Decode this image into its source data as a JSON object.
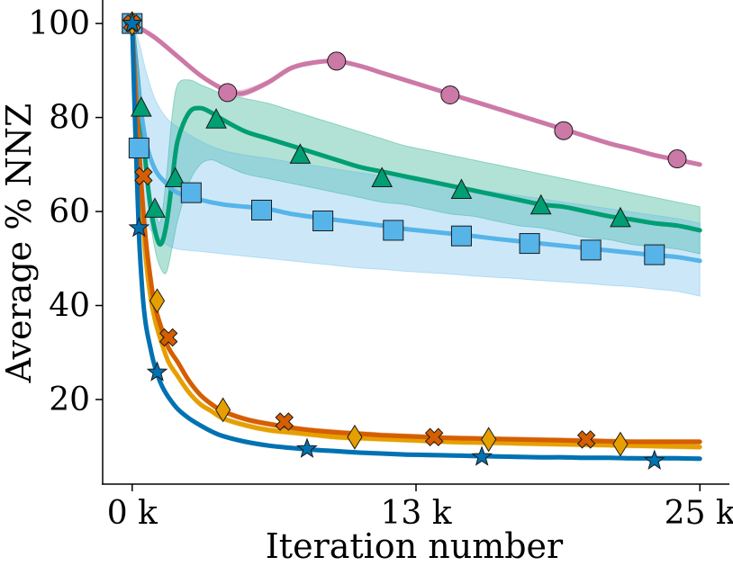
{
  "chart_data": {
    "type": "line",
    "title": "",
    "xlabel": "Iteration number",
    "ylabel": "Average % NNZ",
    "xlim": [
      -1300,
      26300
    ],
    "ylim": [
      2,
      105
    ],
    "x_ticks": [
      0,
      12500,
      25000
    ],
    "x_tick_labels": [
      "0 k",
      "13 k",
      "25 k"
    ],
    "y_ticks": [
      20,
      40,
      60,
      80,
      100
    ],
    "y_tick_labels": [
      "20",
      "40",
      "60",
      "80",
      "100"
    ],
    "grid": false,
    "legend": "none",
    "series": [
      {
        "color": "#CC79A7",
        "marker": "circle",
        "x": [
          0,
          1000,
          2000,
          3000,
          4000,
          4500,
          5000,
          6000,
          7000,
          8000,
          9000,
          10000,
          11000,
          12000,
          13000,
          14000,
          15000,
          16000,
          17000,
          18000,
          19000,
          20000,
          21000,
          22000,
          23000,
          24000,
          25000
        ],
        "y": [
          100,
          97,
          93,
          89,
          86,
          85.2,
          85.3,
          87.5,
          90.5,
          91.7,
          92,
          91,
          89.5,
          88,
          86.5,
          85,
          83.5,
          82,
          80.5,
          79,
          77.5,
          76,
          74.5,
          73.3,
          72,
          71,
          70
        ],
        "band_lo": [
          100,
          96.8,
          92.7,
          88.6,
          85.6,
          84.6,
          84.7,
          87,
          90,
          91.3,
          91.6,
          90.6,
          89.1,
          87.6,
          86.1,
          84.6,
          83.1,
          81.6,
          80.1,
          78.6,
          77.1,
          75.6,
          74.1,
          72.9,
          71.6,
          70.6,
          69.6
        ],
        "band_hi": [
          100,
          97.2,
          93.3,
          89.4,
          86.6,
          85.9,
          86,
          88,
          91,
          92.1,
          92.4,
          91.4,
          89.9,
          88.4,
          86.9,
          85.4,
          83.9,
          82.4,
          80.9,
          79.4,
          77.9,
          76.4,
          74.9,
          73.7,
          72.4,
          71.4,
          70.4
        ],
        "markers_x": [
          0,
          4200,
          9000,
          14000,
          19000,
          24000
        ],
        "markers_y": [
          100,
          85.3,
          92,
          84.8,
          77.2,
          71.2
        ]
      },
      {
        "color": "#009E73",
        "marker": "triangle",
        "x": [
          0,
          250,
          500,
          750,
          1000,
          1250,
          1500,
          1750,
          2000,
          2500,
          3000,
          3500,
          4000,
          5000,
          6000,
          7000,
          8000,
          9000,
          10000,
          11000,
          12000,
          13000,
          14000,
          15000,
          16000,
          17000,
          18000,
          19000,
          20000,
          21000,
          22000,
          23000,
          24000,
          25000
        ],
        "y": [
          100,
          88,
          75,
          63,
          56,
          53,
          57,
          66,
          75,
          81,
          82,
          81,
          79.5,
          77,
          75.5,
          74,
          72.5,
          71,
          69.5,
          68.5,
          67.5,
          66.5,
          65.5,
          64.5,
          63.5,
          62.5,
          61.5,
          61,
          60,
          59,
          58.3,
          57.5,
          57,
          56
        ],
        "band_lo": [
          100,
          86,
          72,
          60,
          52,
          48,
          47,
          52,
          58,
          66,
          70,
          71,
          70,
          68,
          67,
          66,
          65,
          64,
          63,
          62,
          61.5,
          60.5,
          59.5,
          59,
          58,
          57,
          56.5,
          55.5,
          54.5,
          54,
          53,
          52.5,
          52,
          51
        ],
        "band_hi": [
          100,
          90,
          78,
          66,
          60,
          58,
          67,
          80,
          87,
          88,
          87,
          86,
          85,
          84,
          83,
          81.5,
          80,
          78.5,
          77,
          75.5,
          74,
          73,
          72,
          71,
          70,
          69,
          68,
          67,
          66,
          65,
          64,
          63,
          62,
          61
        ],
        "markers_x": [
          0,
          400,
          1000,
          1900,
          3700,
          7400,
          11000,
          14500,
          18000,
          21500
        ],
        "markers_y": [
          100,
          82,
          60.5,
          67,
          79.5,
          72,
          67,
          64.5,
          61.2,
          58.5
        ]
      },
      {
        "color": "#56B4E9",
        "marker": "square",
        "x": [
          0,
          300,
          600,
          1000,
          1500,
          2000,
          3000,
          4000,
          5000,
          6000,
          7000,
          8000,
          9000,
          10000,
          11000,
          12000,
          13000,
          14000,
          15000,
          16000,
          17000,
          18000,
          19000,
          20000,
          21000,
          22000,
          23000,
          24000,
          25000
        ],
        "y": [
          100,
          85,
          75,
          69,
          66,
          64,
          62.5,
          61.5,
          61,
          60.5,
          59.5,
          58.8,
          58.2,
          57.6,
          57,
          56.3,
          55.8,
          55.3,
          54.8,
          54.2,
          53.7,
          53.2,
          52.7,
          52.2,
          51.7,
          51.2,
          50.7,
          50.3,
          49.5
        ],
        "band_lo": [
          100,
          65,
          58,
          55,
          53,
          52,
          51.5,
          51,
          50.5,
          50,
          49.5,
          49,
          48.5,
          48,
          47.7,
          47.3,
          47,
          46.7,
          46.3,
          46,
          45.7,
          45.3,
          45,
          44.7,
          44.3,
          44,
          43.5,
          43,
          42
        ],
        "band_hi": [
          100,
          96,
          90,
          84,
          80,
          78,
          75,
          73,
          72,
          71.3,
          70.5,
          69.8,
          69,
          68.3,
          67.6,
          66.9,
          66.2,
          65.5,
          64.8,
          64.1,
          63.4,
          62.7,
          62,
          61.3,
          60.6,
          59.9,
          59.2,
          58.5,
          57.5
        ],
        "markers_x": [
          0,
          300,
          2600,
          5700,
          8400,
          11500,
          14500,
          17500,
          20200,
          23000
        ],
        "markers_y": [
          100,
          73.5,
          64,
          60.3,
          58,
          56,
          54.8,
          53.2,
          51.8,
          50.8
        ]
      },
      {
        "color": "#E69F00",
        "marker": "diamond",
        "x": [
          0,
          200,
          400,
          600,
          800,
          1000,
          1300,
          1600,
          2000,
          2500,
          3000,
          3500,
          4000,
          5000,
          6000,
          7000,
          8000,
          9000,
          10000,
          11000,
          12000,
          13000,
          14000,
          15000,
          16000,
          17000,
          18000,
          19000,
          20000,
          21000,
          22000,
          23000,
          24000,
          25000
        ],
        "y": [
          100,
          80,
          63,
          50,
          42,
          37,
          32,
          28,
          25,
          21.5,
          19,
          17.5,
          16,
          14.5,
          13.5,
          13,
          12.5,
          12,
          11.8,
          11.6,
          11.4,
          11.2,
          11,
          10.9,
          10.8,
          10.7,
          10.6,
          10.5,
          10.4,
          10.3,
          10.2,
          10.1,
          10,
          9.9
        ],
        "band_lo": [
          100,
          79.5,
          62.5,
          49.5,
          41.5,
          36.5,
          31.5,
          27.5,
          24.5,
          21,
          18.5,
          17,
          15.5,
          14,
          13,
          12.5,
          12,
          11.5,
          11.3,
          11.1,
          10.9,
          10.7,
          10.5,
          10.4,
          10.3,
          10.2,
          10.1,
          10,
          9.9,
          9.8,
          9.7,
          9.6,
          9.5,
          9.4
        ],
        "band_hi": [
          100,
          80.5,
          63.5,
          50.5,
          42.5,
          37.5,
          32.5,
          28.5,
          25.5,
          22,
          19.5,
          18,
          16.5,
          15,
          14,
          13.5,
          13,
          12.5,
          12.3,
          12.1,
          11.9,
          11.7,
          11.5,
          11.4,
          11.3,
          11.2,
          11.1,
          11,
          10.9,
          10.8,
          10.7,
          10.6,
          10.5,
          10.4
        ],
        "markers_x": [
          0,
          1100,
          4000,
          9800,
          15700,
          21500
        ],
        "markers_y": [
          100,
          41,
          17.8,
          12,
          11.5,
          10.5
        ]
      },
      {
        "color": "#D55E00",
        "marker": "cross",
        "x": [
          0,
          200,
          400,
          600,
          800,
          1000,
          1300,
          1600,
          2000,
          2500,
          3000,
          3500,
          4000,
          5000,
          6000,
          7000,
          8000,
          9000,
          10000,
          11000,
          12000,
          13000,
          14000,
          15000,
          16000,
          17000,
          18000,
          19000,
          20000,
          21000,
          22000,
          23000,
          24000,
          25000
        ],
        "y": [
          100,
          82,
          66,
          54,
          46,
          40,
          35,
          31,
          28,
          24,
          21,
          19,
          17.5,
          15.8,
          14.8,
          14,
          13.4,
          13,
          12.7,
          12.4,
          12.2,
          12,
          11.8,
          11.7,
          11.6,
          11.5,
          11.4,
          11.3,
          11.2,
          11.1,
          11,
          11,
          11,
          11
        ],
        "band_lo": [
          100,
          81.5,
          65.5,
          53.5,
          45.5,
          39.5,
          34.5,
          30.5,
          27.5,
          23.5,
          20.5,
          18.5,
          17,
          15.3,
          14.3,
          13.5,
          12.9,
          12.5,
          12.2,
          11.9,
          11.7,
          11.5,
          11.3,
          11.2,
          11.1,
          11,
          10.9,
          10.8,
          10.7,
          10.6,
          10.5,
          10.5,
          10.5,
          10.5
        ],
        "band_hi": [
          100,
          82.5,
          66.5,
          54.5,
          46.5,
          40.5,
          35.5,
          31.5,
          28.5,
          24.5,
          21.5,
          19.5,
          18,
          16.3,
          15.3,
          14.5,
          13.9,
          13.5,
          13.2,
          12.9,
          12.7,
          12.5,
          12.3,
          12.2,
          12.1,
          12,
          11.9,
          11.8,
          11.7,
          11.6,
          11.5,
          11.5,
          11.5,
          11.5
        ],
        "markers_x": [
          0,
          500,
          1600,
          6700,
          13300,
          20000
        ],
        "markers_y": [
          100,
          67.5,
          33.2,
          15.3,
          12,
          11.5
        ]
      },
      {
        "color": "#0072B2",
        "marker": "star",
        "x": [
          0,
          150,
          300,
          450,
          600,
          800,
          1000,
          1300,
          1600,
          2000,
          2500,
          3000,
          3500,
          4000,
          5000,
          6000,
          7000,
          8000,
          9000,
          10000,
          11000,
          12000,
          13000,
          14000,
          15000,
          16000,
          17000,
          18000,
          19000,
          20000,
          21000,
          22000,
          23000,
          24000,
          25000
        ],
        "y": [
          100,
          75,
          55,
          43,
          36,
          31,
          27,
          23,
          20.5,
          18,
          16,
          14.5,
          13.2,
          12.2,
          11,
          10.2,
          9.7,
          9.3,
          9,
          8.7,
          8.5,
          8.3,
          8.2,
          8.1,
          8,
          7.9,
          7.8,
          7.7,
          7.7,
          7.6,
          7.6,
          7.5,
          7.5,
          7.5,
          7.4
        ],
        "band_lo": [
          100,
          74.6,
          54.6,
          42.6,
          35.6,
          30.6,
          26.6,
          22.6,
          20.1,
          17.6,
          15.6,
          14.1,
          12.8,
          11.8,
          10.6,
          9.8,
          9.3,
          8.9,
          8.6,
          8.3,
          8.1,
          7.9,
          7.8,
          7.7,
          7.6,
          7.5,
          7.4,
          7.3,
          7.3,
          7.2,
          7.2,
          7.1,
          7.1,
          7.1,
          7
        ],
        "band_hi": [
          100,
          75.4,
          55.4,
          43.4,
          36.4,
          31.4,
          27.4,
          23.4,
          20.9,
          18.4,
          16.4,
          14.9,
          13.6,
          12.6,
          11.4,
          10.6,
          10.1,
          9.7,
          9.4,
          9.1,
          8.9,
          8.7,
          8.6,
          8.5,
          8.4,
          8.3,
          8.2,
          8.1,
          8.1,
          8,
          8,
          7.9,
          7.9,
          7.9,
          7.8
        ],
        "markers_x": [
          0,
          300,
          1100,
          7700,
          15400,
          23000
        ],
        "markers_y": [
          100,
          56.5,
          25.8,
          9.5,
          7.8,
          7
        ]
      }
    ]
  }
}
